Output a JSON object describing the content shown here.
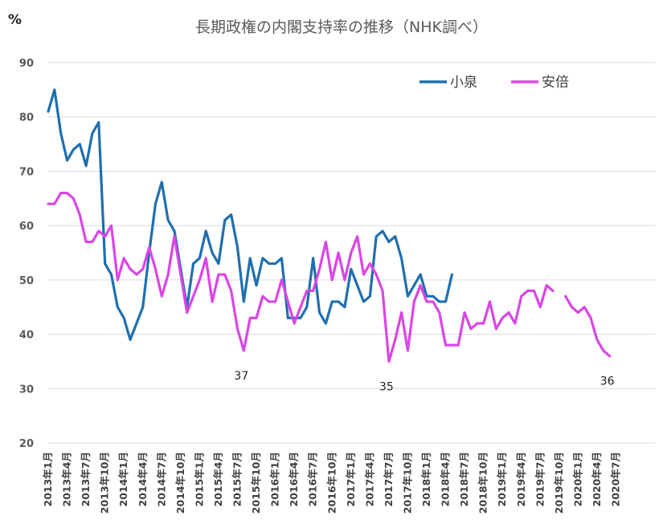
{
  "chart_data": {
    "type": "line",
    "title": "長期政権の内閣支持率の推移（NHK調べ）",
    "unit_label": "%",
    "ylim": [
      20,
      90
    ],
    "yticks": [
      20,
      30,
      40,
      50,
      60,
      70,
      80,
      90
    ],
    "grid": "horizontal",
    "legend_position": "top-right",
    "x_labels": [
      "2013年1月",
      "2013年4月",
      "2013年7月",
      "2013年10月",
      "2014年1月",
      "2014年4月",
      "2014年7月",
      "2014年10月",
      "2015年1月",
      "2015年4月",
      "2015年7月",
      "2015年10月",
      "2016年1月",
      "2016年4月",
      "2016年7月",
      "2016年10月",
      "2017年1月",
      "2017年4月",
      "2017年7月",
      "2017年10月",
      "2018年1月",
      "2018年4月",
      "2018年7月",
      "2018年10月",
      "2019年1月",
      "2019年4月",
      "2019年7月",
      "2019年10月",
      "2020年1月",
      "2020年4月",
      "2020年7月"
    ],
    "series": [
      {
        "name": "小泉",
        "color": "#1f6fae",
        "values": [
          81,
          85,
          77,
          72,
          74,
          75,
          71,
          77,
          79,
          53,
          51,
          45,
          43,
          39,
          42,
          45,
          55,
          64,
          68,
          61,
          59,
          52,
          45,
          53,
          54,
          59,
          55,
          53,
          61,
          62,
          56,
          46,
          54,
          49,
          54,
          53,
          53,
          54,
          43,
          43,
          43,
          45,
          54,
          44,
          42,
          46,
          46,
          45,
          52,
          49,
          46,
          47,
          58,
          59,
          57,
          58,
          54,
          47,
          49,
          51,
          47,
          47,
          46,
          46,
          51
        ]
      },
      {
        "name": "安倍",
        "color": "#d946e6",
        "values": [
          64,
          64,
          66,
          66,
          65,
          62,
          57,
          57,
          59,
          58,
          60,
          50,
          54,
          52,
          51,
          52,
          56,
          52,
          47,
          51,
          58,
          51,
          44,
          47,
          50,
          54,
          46,
          51,
          51,
          48,
          41,
          37,
          43,
          43,
          47,
          46,
          46,
          50,
          46,
          42,
          45,
          48,
          48,
          52,
          57,
          50,
          55,
          50,
          55,
          58,
          51,
          53,
          51,
          48,
          35,
          39,
          44,
          37,
          46,
          49,
          46,
          46,
          44,
          38,
          38,
          38,
          44,
          41,
          42,
          42,
          46,
          41,
          43,
          44,
          42,
          47,
          48,
          48,
          45,
          49,
          48,
          null,
          47,
          45,
          44,
          45,
          43,
          39,
          37,
          36
        ]
      }
    ],
    "annotations": [
      {
        "text": "37",
        "series": "安倍",
        "index": 31
      },
      {
        "text": "35",
        "series": "安倍",
        "index": 54
      },
      {
        "text": "36",
        "series": "安倍",
        "index": 89
      }
    ]
  }
}
